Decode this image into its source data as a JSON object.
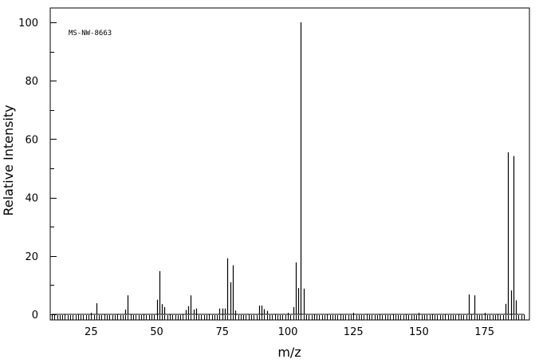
{
  "chart_data": {
    "type": "bar",
    "annotation": "MS-NW-8663",
    "xlabel": "m/z",
    "ylabel": "Relative Intensity",
    "xlim": [
      10,
      190
    ],
    "ylim": [
      0,
      100
    ],
    "x_ticks": [
      25,
      50,
      75,
      100,
      125,
      150,
      175
    ],
    "y_ticks": [
      0,
      20,
      40,
      60,
      80,
      100
    ],
    "grid": false,
    "legend": "none",
    "bar_color": "#000000",
    "series": [
      {
        "peaks": [
          {
            "mz": 27,
            "intensity": 3.8
          },
          {
            "mz": 38,
            "intensity": 1.6
          },
          {
            "mz": 39,
            "intensity": 6.5
          },
          {
            "mz": 50,
            "intensity": 5.0
          },
          {
            "mz": 51,
            "intensity": 14.8
          },
          {
            "mz": 52,
            "intensity": 3.5
          },
          {
            "mz": 53,
            "intensity": 2.5
          },
          {
            "mz": 61,
            "intensity": 1.5
          },
          {
            "mz": 62,
            "intensity": 2.8
          },
          {
            "mz": 63,
            "intensity": 6.5
          },
          {
            "mz": 64,
            "intensity": 1.6
          },
          {
            "mz": 65,
            "intensity": 2.0
          },
          {
            "mz": 74,
            "intensity": 2.0
          },
          {
            "mz": 75,
            "intensity": 2.0
          },
          {
            "mz": 76,
            "intensity": 2.0
          },
          {
            "mz": 77,
            "intensity": 19.2
          },
          {
            "mz": 78,
            "intensity": 11.0
          },
          {
            "mz": 79,
            "intensity": 16.8
          },
          {
            "mz": 80,
            "intensity": 1.3
          },
          {
            "mz": 89,
            "intensity": 3.0
          },
          {
            "mz": 90,
            "intensity": 3.0
          },
          {
            "mz": 91,
            "intensity": 1.8
          },
          {
            "mz": 92,
            "intensity": 1.2
          },
          {
            "mz": 102,
            "intensity": 2.5
          },
          {
            "mz": 103,
            "intensity": 17.8
          },
          {
            "mz": 104,
            "intensity": 9.0
          },
          {
            "mz": 105,
            "intensity": 100
          },
          {
            "mz": 106,
            "intensity": 8.8
          },
          {
            "mz": 169,
            "intensity": 6.8
          },
          {
            "mz": 171,
            "intensity": 6.5
          },
          {
            "mz": 183,
            "intensity": 3.6
          },
          {
            "mz": 184,
            "intensity": 55.5
          },
          {
            "mz": 185,
            "intensity": 8.2
          },
          {
            "mz": 186,
            "intensity": 54.2
          },
          {
            "mz": 187,
            "intensity": 4.8
          }
        ]
      }
    ]
  }
}
